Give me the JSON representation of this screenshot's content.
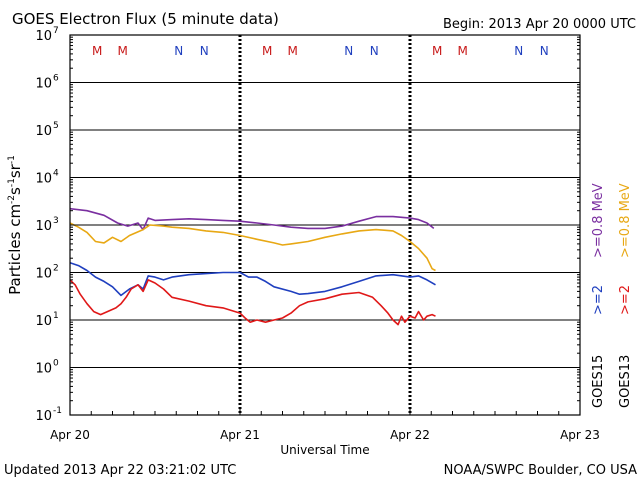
{
  "chart_data": {
    "type": "line",
    "title": "GOES Electron Flux (5 minute data)",
    "begin_label": "Begin: 2013 Apr 20 0000 UTC",
    "xlabel": "Universal Time",
    "ylabel_parts": [
      "Particles cm",
      "-2",
      "s",
      "-1",
      "sr",
      "-1"
    ],
    "footer_left": "Updated 2013 Apr 22 03:21:02 UTC",
    "footer_right": "NOAA/SWPC Boulder, CO USA",
    "yscale": "log",
    "ylim_exp": [
      -1,
      7
    ],
    "y_tick_base": "10",
    "y_ticks_exp": [
      -1,
      0,
      1,
      2,
      3,
      4,
      5,
      6,
      7
    ],
    "xlim_days": [
      0,
      3
    ],
    "x_ticks": [
      {
        "day": 0,
        "label": "Apr 20"
      },
      {
        "day": 1,
        "label": "Apr 21"
      },
      {
        "day": 2,
        "label": "Apr 22"
      },
      {
        "day": 3,
        "label": "Apr 23"
      }
    ],
    "threshold_value": 1000,
    "colors": {
      "g15_2mev": "#1f3fbf",
      "g15_08mev": "#7a2fa0",
      "g13_2mev": "#e01818",
      "g13_08mev": "#e8a814",
      "marker_M": "#c81a1a",
      "marker_N": "#1f3fbf"
    },
    "markers": [
      {
        "letter": "M",
        "day": 0.16
      },
      {
        "letter": "M",
        "day": 0.31
      },
      {
        "letter": "N",
        "day": 0.64
      },
      {
        "letter": "N",
        "day": 0.79
      },
      {
        "letter": "M",
        "day": 1.16
      },
      {
        "letter": "M",
        "day": 1.31
      },
      {
        "letter": "N",
        "day": 1.64
      },
      {
        "letter": "N",
        "day": 1.79
      },
      {
        "letter": "M",
        "day": 2.16
      },
      {
        "letter": "M",
        "day": 2.31
      },
      {
        "letter": "N",
        "day": 2.64
      },
      {
        "letter": "N",
        "day": 2.79
      }
    ],
    "legend": [
      {
        "satellite": "GOES15",
        "energy_2": ">=2",
        "energy_08": ">=0.8 MeV"
      },
      {
        "satellite": "GOES13",
        "energy_2": ">=2",
        "energy_08": ">=0.8 MeV"
      }
    ],
    "series": [
      {
        "name": "GOES15 >=0.8 MeV",
        "color_key": "g15_08mev",
        "points": [
          [
            0,
            2200
          ],
          [
            0.1,
            2000
          ],
          [
            0.2,
            1600
          ],
          [
            0.28,
            1100
          ],
          [
            0.34,
            950
          ],
          [
            0.4,
            1100
          ],
          [
            0.43,
            800
          ],
          [
            0.46,
            1400
          ],
          [
            0.5,
            1250
          ],
          [
            0.6,
            1300
          ],
          [
            0.7,
            1350
          ],
          [
            0.8,
            1300
          ],
          [
            0.9,
            1250
          ],
          [
            1.0,
            1200
          ],
          [
            1.1,
            1100
          ],
          [
            1.2,
            1000
          ],
          [
            1.3,
            900
          ],
          [
            1.4,
            850
          ],
          [
            1.5,
            850
          ],
          [
            1.6,
            950
          ],
          [
            1.7,
            1200
          ],
          [
            1.8,
            1500
          ],
          [
            1.9,
            1500
          ],
          [
            2.0,
            1400
          ],
          [
            2.05,
            1300
          ],
          [
            2.1,
            1100
          ],
          [
            2.14,
            850
          ]
        ]
      },
      {
        "name": "GOES13 >=0.8 MeV",
        "color_key": "g13_08mev",
        "points": [
          [
            0,
            1100
          ],
          [
            0.05,
            900
          ],
          [
            0.1,
            700
          ],
          [
            0.15,
            450
          ],
          [
            0.2,
            420
          ],
          [
            0.25,
            550
          ],
          [
            0.3,
            450
          ],
          [
            0.35,
            600
          ],
          [
            0.43,
            800
          ],
          [
            0.47,
            1000
          ],
          [
            0.55,
            950
          ],
          [
            0.6,
            900
          ],
          [
            0.7,
            850
          ],
          [
            0.8,
            750
          ],
          [
            0.9,
            700
          ],
          [
            1.0,
            600
          ],
          [
            1.1,
            500
          ],
          [
            1.2,
            420
          ],
          [
            1.25,
            380
          ],
          [
            1.3,
            400
          ],
          [
            1.4,
            450
          ],
          [
            1.5,
            550
          ],
          [
            1.6,
            650
          ],
          [
            1.7,
            750
          ],
          [
            1.8,
            800
          ],
          [
            1.9,
            750
          ],
          [
            1.95,
            600
          ],
          [
            2.0,
            450
          ],
          [
            2.05,
            320
          ],
          [
            2.1,
            200
          ],
          [
            2.13,
            120
          ],
          [
            2.15,
            110
          ]
        ]
      },
      {
        "name": "GOES15 >=2 MeV",
        "color_key": "g15_2mev",
        "points": [
          [
            0,
            160
          ],
          [
            0.05,
            140
          ],
          [
            0.1,
            110
          ],
          [
            0.15,
            80
          ],
          [
            0.2,
            65
          ],
          [
            0.25,
            50
          ],
          [
            0.3,
            33
          ],
          [
            0.35,
            45
          ],
          [
            0.4,
            55
          ],
          [
            0.43,
            45
          ],
          [
            0.46,
            85
          ],
          [
            0.5,
            80
          ],
          [
            0.55,
            70
          ],
          [
            0.6,
            80
          ],
          [
            0.7,
            90
          ],
          [
            0.8,
            95
          ],
          [
            0.9,
            100
          ],
          [
            1.0,
            100
          ],
          [
            1.05,
            80
          ],
          [
            1.1,
            80
          ],
          [
            1.15,
            65
          ],
          [
            1.2,
            50
          ],
          [
            1.3,
            40
          ],
          [
            1.35,
            35
          ],
          [
            1.4,
            36
          ],
          [
            1.5,
            40
          ],
          [
            1.6,
            50
          ],
          [
            1.7,
            65
          ],
          [
            1.8,
            85
          ],
          [
            1.9,
            90
          ],
          [
            2.0,
            80
          ],
          [
            2.05,
            85
          ],
          [
            2.1,
            70
          ],
          [
            2.15,
            55
          ]
        ]
      },
      {
        "name": "GOES13 >=2 MeV",
        "color_key": "g13_2mev",
        "points": [
          [
            0,
            70
          ],
          [
            0.03,
            55
          ],
          [
            0.06,
            35
          ],
          [
            0.1,
            22
          ],
          [
            0.14,
            15
          ],
          [
            0.18,
            13
          ],
          [
            0.22,
            15
          ],
          [
            0.27,
            18
          ],
          [
            0.3,
            22
          ],
          [
            0.33,
            30
          ],
          [
            0.36,
            45
          ],
          [
            0.4,
            55
          ],
          [
            0.43,
            40
          ],
          [
            0.46,
            70
          ],
          [
            0.5,
            60
          ],
          [
            0.55,
            45
          ],
          [
            0.6,
            30
          ],
          [
            0.7,
            25
          ],
          [
            0.8,
            20
          ],
          [
            0.9,
            18
          ],
          [
            1.0,
            14
          ],
          [
            1.03,
            11
          ],
          [
            1.06,
            9
          ],
          [
            1.1,
            10
          ],
          [
            1.15,
            9
          ],
          [
            1.2,
            10
          ],
          [
            1.25,
            11
          ],
          [
            1.3,
            14
          ],
          [
            1.35,
            20
          ],
          [
            1.4,
            24
          ],
          [
            1.5,
            28
          ],
          [
            1.6,
            35
          ],
          [
            1.7,
            38
          ],
          [
            1.78,
            30
          ],
          [
            1.83,
            20
          ],
          [
            1.87,
            14
          ],
          [
            1.9,
            10
          ],
          [
            1.93,
            8
          ],
          [
            1.95,
            12
          ],
          [
            1.97,
            9
          ],
          [
            2.0,
            12
          ],
          [
            2.03,
            11
          ],
          [
            2.05,
            15
          ],
          [
            2.08,
            10
          ],
          [
            2.1,
            12
          ],
          [
            2.13,
            13
          ],
          [
            2.15,
            12
          ]
        ]
      }
    ]
  }
}
